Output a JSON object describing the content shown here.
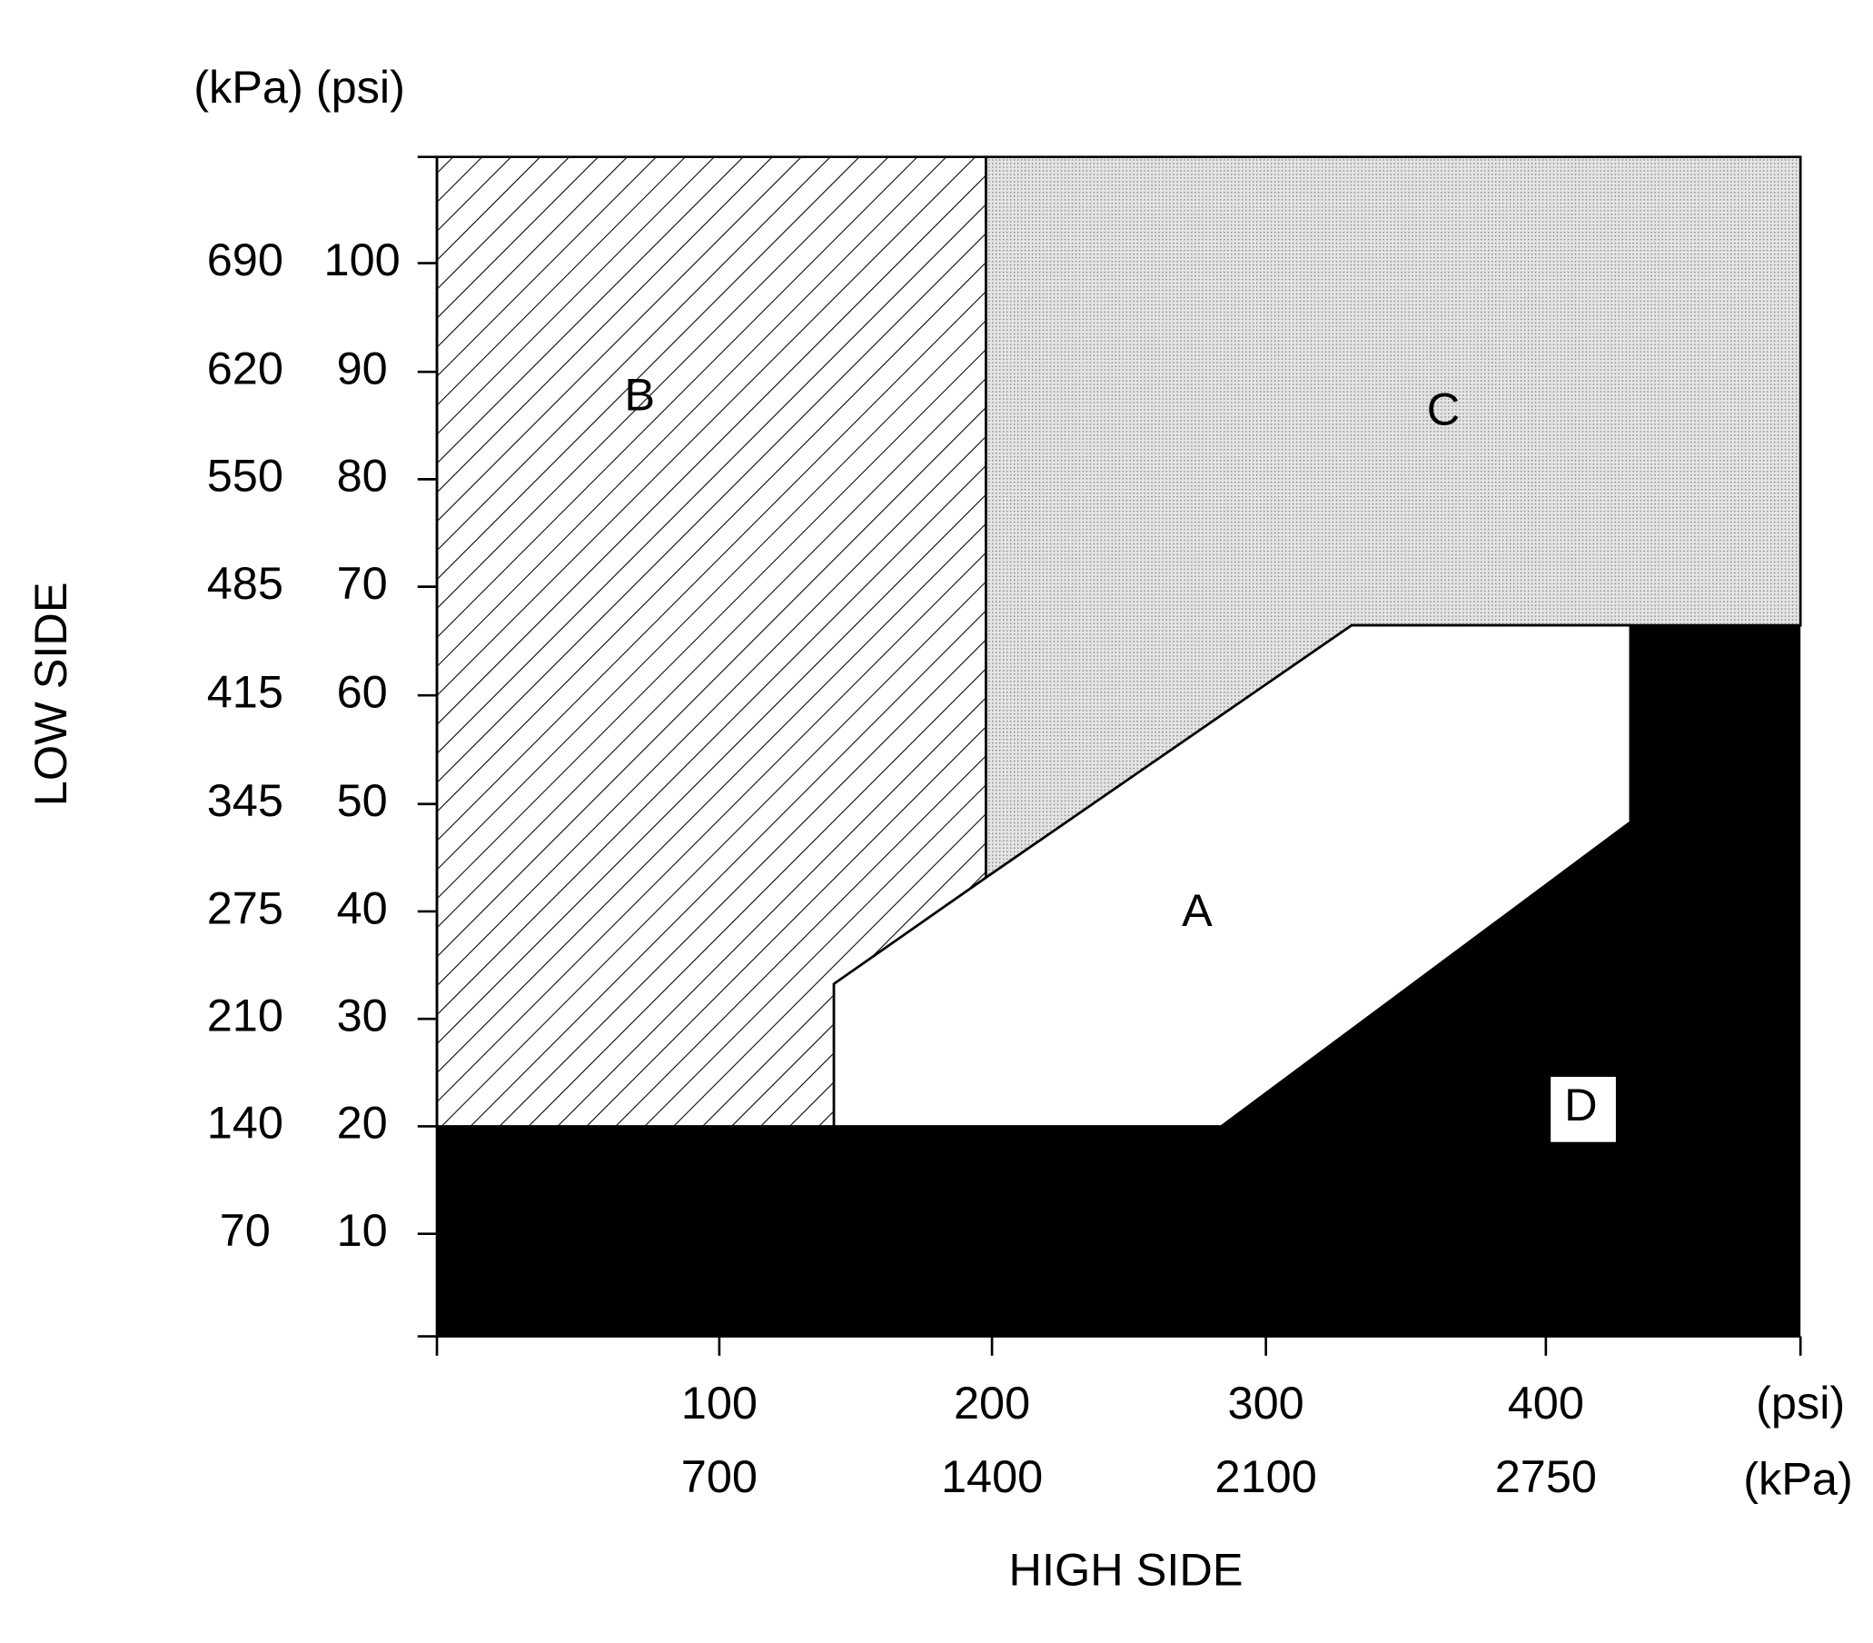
{
  "header": {
    "units_label": "(kPa) (psi)"
  },
  "y_axis": {
    "title": "LOW SIDE",
    "ticks": [
      {
        "kpa": "690",
        "psi": "100"
      },
      {
        "kpa": "620",
        "psi": "90"
      },
      {
        "kpa": "550",
        "psi": "80"
      },
      {
        "kpa": "485",
        "psi": "70"
      },
      {
        "kpa": "415",
        "psi": "60"
      },
      {
        "kpa": "345",
        "psi": "50"
      },
      {
        "kpa": "275",
        "psi": "40"
      },
      {
        "kpa": "210",
        "psi": "30"
      },
      {
        "kpa": "140",
        "psi": "20"
      },
      {
        "kpa": "70",
        "psi": "10"
      }
    ]
  },
  "x_axis": {
    "title": "HIGH SIDE",
    "psi_unit": "(psi)",
    "kpa_unit": "(kPa)",
    "ticks": [
      {
        "psi": "100",
        "kpa": "700"
      },
      {
        "psi": "200",
        "kpa": "1400"
      },
      {
        "psi": "300",
        "kpa": "2100"
      },
      {
        "psi": "400",
        "kpa": "2750"
      }
    ]
  },
  "regions": [
    {
      "label": "A"
    },
    {
      "label": "B"
    },
    {
      "label": "C"
    },
    {
      "label": "D"
    }
  ]
}
